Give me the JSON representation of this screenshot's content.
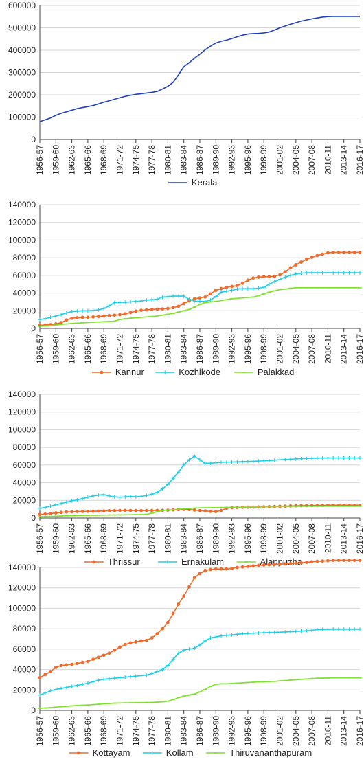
{
  "chart_data": [
    {
      "type": "line",
      "title": "",
      "xlabel": "",
      "ylabel": "",
      "ylim": [
        0,
        600000
      ],
      "yticks": [
        0,
        100000,
        200000,
        300000,
        400000,
        500000,
        600000
      ],
      "grid": true,
      "legend": "bottom",
      "categories": [
        "1956-57",
        "1959-60",
        "1962-63",
        "1965-66",
        "1968-69",
        "1971-72",
        "1974-75",
        "1977-78",
        "1980-81",
        "1983-84",
        "1986-87",
        "1989-90",
        "1992-93",
        "1995-96",
        "1998-99",
        "2001-02",
        "2004-05",
        "2007-08",
        "2010-11",
        "2013-14",
        "2016-17"
      ],
      "x": [
        1956,
        1957,
        1958,
        1959,
        1960,
        1961,
        1962,
        1963,
        1964,
        1965,
        1966,
        1967,
        1968,
        1969,
        1970,
        1971,
        1972,
        1973,
        1974,
        1975,
        1976,
        1977,
        1978,
        1979,
        1980,
        1981,
        1982,
        1983,
        1984,
        1985,
        1986,
        1987,
        1988,
        1989,
        1990,
        1991,
        1992,
        1993,
        1994,
        1995,
        1996,
        1997,
        1998,
        1999,
        2000,
        2001,
        2002,
        2003,
        2004,
        2005,
        2006,
        2007,
        2008,
        2009,
        2010,
        2011,
        2012,
        2013,
        2014,
        2015,
        2016
      ],
      "series": [
        {
          "name": "Kerala",
          "color": "#1f3fbf",
          "marker": "none",
          "values": [
            80000,
            88000,
            96000,
            108000,
            117000,
            124000,
            131000,
            138000,
            143000,
            147000,
            152000,
            159000,
            167000,
            173000,
            180000,
            187000,
            193000,
            198000,
            202000,
            205000,
            208000,
            211000,
            215000,
            226000,
            238000,
            256000,
            290000,
            326000,
            344000,
            364000,
            382000,
            402000,
            418000,
            432000,
            440000,
            445000,
            452000,
            460000,
            467000,
            472000,
            474000,
            475000,
            477000,
            481000,
            490000,
            500000,
            508000,
            516000,
            523000,
            530000,
            535000,
            540000,
            544000,
            548000,
            550000,
            551000,
            551000,
            551000,
            551000,
            551000,
            551000
          ]
        }
      ]
    },
    {
      "type": "line",
      "title": "",
      "xlabel": "",
      "ylabel": "",
      "ylim": [
        0,
        140000
      ],
      "yticks": [
        0,
        20000,
        40000,
        60000,
        80000,
        100000,
        120000,
        140000
      ],
      "grid": true,
      "legend": "bottom",
      "categories": [
        "1956-57",
        "1959-60",
        "1962-63",
        "1965-66",
        "1968-69",
        "1971-72",
        "1974-75",
        "1977-78",
        "1980-81",
        "1983-84",
        "1986-87",
        "1989-90",
        "1992-93",
        "1995-96",
        "1998-99",
        "2001-02",
        "2004-05",
        "2007-08",
        "2010-11",
        "2013-14",
        "2016-17"
      ],
      "x": [
        1956,
        1957,
        1958,
        1959,
        1960,
        1961,
        1962,
        1963,
        1964,
        1965,
        1966,
        1967,
        1968,
        1969,
        1970,
        1971,
        1972,
        1973,
        1974,
        1975,
        1976,
        1977,
        1978,
        1979,
        1980,
        1981,
        1982,
        1983,
        1984,
        1985,
        1986,
        1987,
        1988,
        1989,
        1990,
        1991,
        1992,
        1993,
        1994,
        1995,
        1996,
        1997,
        1998,
        1999,
        2000,
        2001,
        2002,
        2003,
        2004,
        2005,
        2006,
        2007,
        2008,
        2009,
        2010,
        2011,
        2012,
        2013,
        2014,
        2015,
        2016
      ],
      "series": [
        {
          "name": "Kannur",
          "color": "#f06a2a",
          "marker": "dot",
          "values": [
            3500,
            3800,
            4200,
            5000,
            6500,
            9500,
            11500,
            12000,
            12500,
            12500,
            13000,
            13500,
            14000,
            14500,
            15000,
            15500,
            16500,
            18000,
            19500,
            20500,
            21000,
            21500,
            21800,
            22000,
            22500,
            23500,
            25000,
            28000,
            31000,
            33500,
            34500,
            35500,
            39000,
            43000,
            45000,
            46500,
            47500,
            48500,
            51000,
            54500,
            57000,
            58000,
            58500,
            58500,
            59000,
            60500,
            64000,
            68500,
            72000,
            75000,
            78000,
            80500,
            82500,
            84000,
            85500,
            86000,
            86000,
            86000,
            86000,
            86000,
            86000
          ]
        },
        {
          "name": "Kozhikode",
          "color": "#1ccfe8",
          "marker": "plus",
          "values": [
            10000,
            11000,
            12500,
            14000,
            15500,
            17500,
            19000,
            19500,
            20000,
            20000,
            20500,
            21000,
            22500,
            25500,
            29000,
            29500,
            29500,
            30000,
            30500,
            31000,
            32000,
            32500,
            33000,
            35500,
            36000,
            36500,
            36500,
            36500,
            33000,
            31000,
            30500,
            30500,
            32000,
            36000,
            41000,
            42000,
            43000,
            44500,
            45000,
            45000,
            45000,
            45500,
            46500,
            50000,
            53000,
            55500,
            58000,
            60000,
            61500,
            62500,
            63000,
            63000,
            63000,
            63000,
            63000,
            63000,
            63000,
            63000,
            63000,
            63000,
            63000
          ]
        },
        {
          "name": "Palakkad",
          "color": "#7ee22c",
          "marker": "dash",
          "values": [
            2500,
            2800,
            3200,
            3800,
            4500,
            5000,
            5500,
            6000,
            6300,
            6700,
            7000,
            7200,
            7500,
            7800,
            8000,
            10000,
            11000,
            11500,
            12000,
            12500,
            13000,
            13500,
            14000,
            15000,
            16000,
            17000,
            18500,
            20000,
            21500,
            24000,
            27000,
            29000,
            30000,
            30500,
            31500,
            32500,
            33500,
            34000,
            34500,
            35000,
            35500,
            37000,
            39000,
            41000,
            42500,
            44000,
            44500,
            45500,
            46000,
            46000,
            46000,
            46000,
            46000,
            46000,
            46000,
            46000,
            46000,
            46000,
            46000,
            46000,
            46000
          ]
        }
      ]
    },
    {
      "type": "line",
      "title": "",
      "xlabel": "",
      "ylabel": "",
      "ylim": [
        0,
        140000
      ],
      "yticks": [
        0,
        20000,
        40000,
        60000,
        80000,
        100000,
        120000,
        140000
      ],
      "grid": true,
      "legend": "bottom",
      "categories": [
        "1956-57",
        "1959-60",
        "1962-63",
        "1965-66",
        "1968-69",
        "1971-72",
        "1974-75",
        "1977-78",
        "1980-81",
        "1983-84",
        "1986-87",
        "1989-90",
        "1992-93",
        "1995-96",
        "1998-99",
        "2001-02",
        "2004-05",
        "2007-08",
        "2010-11",
        "2013-14",
        "2016-17"
      ],
      "x": [
        1956,
        1957,
        1958,
        1959,
        1960,
        1961,
        1962,
        1963,
        1964,
        1965,
        1966,
        1967,
        1968,
        1969,
        1970,
        1971,
        1972,
        1973,
        1974,
        1975,
        1976,
        1977,
        1978,
        1979,
        1980,
        1981,
        1982,
        1983,
        1984,
        1985,
        1986,
        1987,
        1988,
        1989,
        1990,
        1991,
        1992,
        1993,
        1994,
        1995,
        1996,
        1997,
        1998,
        1999,
        2000,
        2001,
        2002,
        2003,
        2004,
        2005,
        2006,
        2007,
        2008,
        2009,
        2010,
        2011,
        2012,
        2013,
        2014,
        2015,
        2016
      ],
      "series": [
        {
          "name": "Thrissur",
          "color": "#f06a2a",
          "marker": "dot",
          "values": [
            4000,
            4500,
            5000,
            5800,
            6400,
            6900,
            7100,
            7300,
            7400,
            7500,
            7600,
            7800,
            8000,
            8200,
            8400,
            8500,
            8600,
            8500,
            8400,
            8300,
            8400,
            8500,
            8600,
            8700,
            8900,
            9200,
            9500,
            9800,
            9600,
            9000,
            8300,
            8000,
            7500,
            7200,
            8500,
            11000,
            11800,
            12000,
            12200,
            12300,
            12400,
            12500,
            12700,
            12900,
            13100,
            13300,
            13500,
            13700,
            13900,
            14000,
            14100,
            14200,
            14300,
            14400,
            14500,
            14500,
            14500,
            14500,
            14500,
            14500,
            14500
          ]
        },
        {
          "name": "Ernakulam",
          "color": "#1ccfe8",
          "marker": "plus",
          "values": [
            11000,
            12000,
            13500,
            15000,
            16500,
            18000,
            19500,
            20500,
            22000,
            23500,
            25000,
            26000,
            26500,
            25000,
            24000,
            23500,
            24000,
            24500,
            24000,
            24500,
            25500,
            27000,
            29000,
            33000,
            38000,
            45000,
            52000,
            60000,
            66000,
            70000,
            66000,
            62000,
            62000,
            62500,
            63000,
            63200,
            63400,
            63600,
            63800,
            64000,
            64200,
            64500,
            64800,
            65000,
            65500,
            66000,
            66300,
            66600,
            67000,
            67200,
            67400,
            67600,
            67800,
            67900,
            68000,
            68000,
            68000,
            68000,
            68000,
            68000,
            68000
          ]
        },
        {
          "name": "Alappuzha",
          "color": "#7ee22c",
          "marker": "dash",
          "values": [
            1500,
            1700,
            1900,
            2100,
            2300,
            2500,
            2700,
            2900,
            3000,
            3100,
            3200,
            3200,
            3300,
            3400,
            3500,
            3500,
            3600,
            3700,
            3800,
            3900,
            4200,
            5500,
            7000,
            8500,
            9000,
            9500,
            10000,
            10500,
            10800,
            11200,
            11500,
            11600,
            11700,
            11800,
            11900,
            12000,
            12100,
            12200,
            12300,
            12400,
            12500,
            12600,
            12700,
            12800,
            12900,
            13000,
            13100,
            13200,
            13300,
            13400,
            13400,
            13400,
            13400,
            13400,
            13400,
            13400,
            13400,
            13400,
            13400,
            13400,
            13400
          ]
        }
      ]
    },
    {
      "type": "line",
      "title": "",
      "xlabel": "",
      "ylabel": "",
      "ylim": [
        0,
        140000
      ],
      "yticks": [
        0,
        20000,
        40000,
        60000,
        80000,
        100000,
        120000,
        140000
      ],
      "grid": true,
      "legend": "bottom",
      "categories": [
        "1956-57",
        "1959-60",
        "1962-63",
        "1965-66",
        "1968-69",
        "1971-72",
        "1974-75",
        "1977-78",
        "1980-81",
        "1983-84",
        "1986-87",
        "1989-90",
        "1992-93",
        "1995-96",
        "1998-99",
        "2001-02",
        "2004-05",
        "2007-08",
        "2010-11",
        "2013-14",
        "2016-17"
      ],
      "x": [
        1956,
        1957,
        1958,
        1959,
        1960,
        1961,
        1962,
        1963,
        1964,
        1965,
        1966,
        1967,
        1968,
        1969,
        1970,
        1971,
        1972,
        1973,
        1974,
        1975,
        1976,
        1977,
        1978,
        1979,
        1980,
        1981,
        1982,
        1983,
        1984,
        1985,
        1986,
        1987,
        1988,
        1989,
        1990,
        1991,
        1992,
        1993,
        1994,
        1995,
        1996,
        1997,
        1998,
        1999,
        2000,
        2001,
        2002,
        2003,
        2004,
        2005,
        2006,
        2007,
        2008,
        2009,
        2010,
        2011,
        2012,
        2013,
        2014,
        2015,
        2016
      ],
      "series": [
        {
          "name": "Kottayam",
          "color": "#f06a2a",
          "marker": "dot",
          "values": [
            32000,
            35000,
            38000,
            42000,
            44000,
            44500,
            45000,
            46000,
            47000,
            48000,
            50000,
            52000,
            54000,
            56000,
            59000,
            62000,
            64500,
            66000,
            67000,
            68000,
            68500,
            71000,
            75000,
            80000,
            86000,
            95000,
            104000,
            112000,
            121000,
            130000,
            134000,
            137000,
            138000,
            138500,
            138500,
            138500,
            139000,
            140000,
            140500,
            141000,
            141500,
            142000,
            142300,
            142600,
            142900,
            143200,
            143500,
            143800,
            144200,
            144600,
            145000,
            145500,
            146000,
            146300,
            146600,
            147000,
            147000,
            147000,
            147000,
            147000,
            147000
          ]
        },
        {
          "name": "Kollam",
          "color": "#1ccfe8",
          "marker": "plus",
          "values": [
            15000,
            17000,
            19000,
            20500,
            21500,
            22500,
            23500,
            24500,
            25500,
            26500,
            28000,
            29500,
            30500,
            31000,
            31500,
            32000,
            32500,
            33000,
            33500,
            34000,
            34500,
            36000,
            38000,
            40000,
            44000,
            50000,
            56000,
            59000,
            60000,
            61000,
            64000,
            68000,
            71000,
            72000,
            73000,
            73500,
            74000,
            74500,
            75000,
            75300,
            75600,
            75800,
            76000,
            76200,
            76400,
            76600,
            76800,
            77000,
            77300,
            77600,
            78000,
            78500,
            79000,
            79200,
            79400,
            79500,
            79500,
            79500,
            79500,
            79500,
            79500
          ]
        },
        {
          "name": "Thiruvananthapuram",
          "color": "#7ee22c",
          "marker": "dash",
          "values": [
            2000,
            2300,
            2700,
            3200,
            3600,
            4000,
            4400,
            4700,
            5000,
            5300,
            5600,
            6000,
            6400,
            6700,
            7000,
            7200,
            7300,
            7400,
            7500,
            7600,
            7700,
            7800,
            8000,
            8300,
            9000,
            10500,
            12500,
            14000,
            15000,
            16000,
            18000,
            20500,
            23500,
            25500,
            26000,
            26000,
            26300,
            26600,
            27000,
            27300,
            27600,
            27800,
            28000,
            28200,
            28400,
            28800,
            29200,
            29600,
            30000,
            30400,
            30800,
            31200,
            31500,
            31600,
            31700,
            31800,
            31800,
            31800,
            31800,
            31800,
            31800
          ]
        }
      ]
    }
  ]
}
